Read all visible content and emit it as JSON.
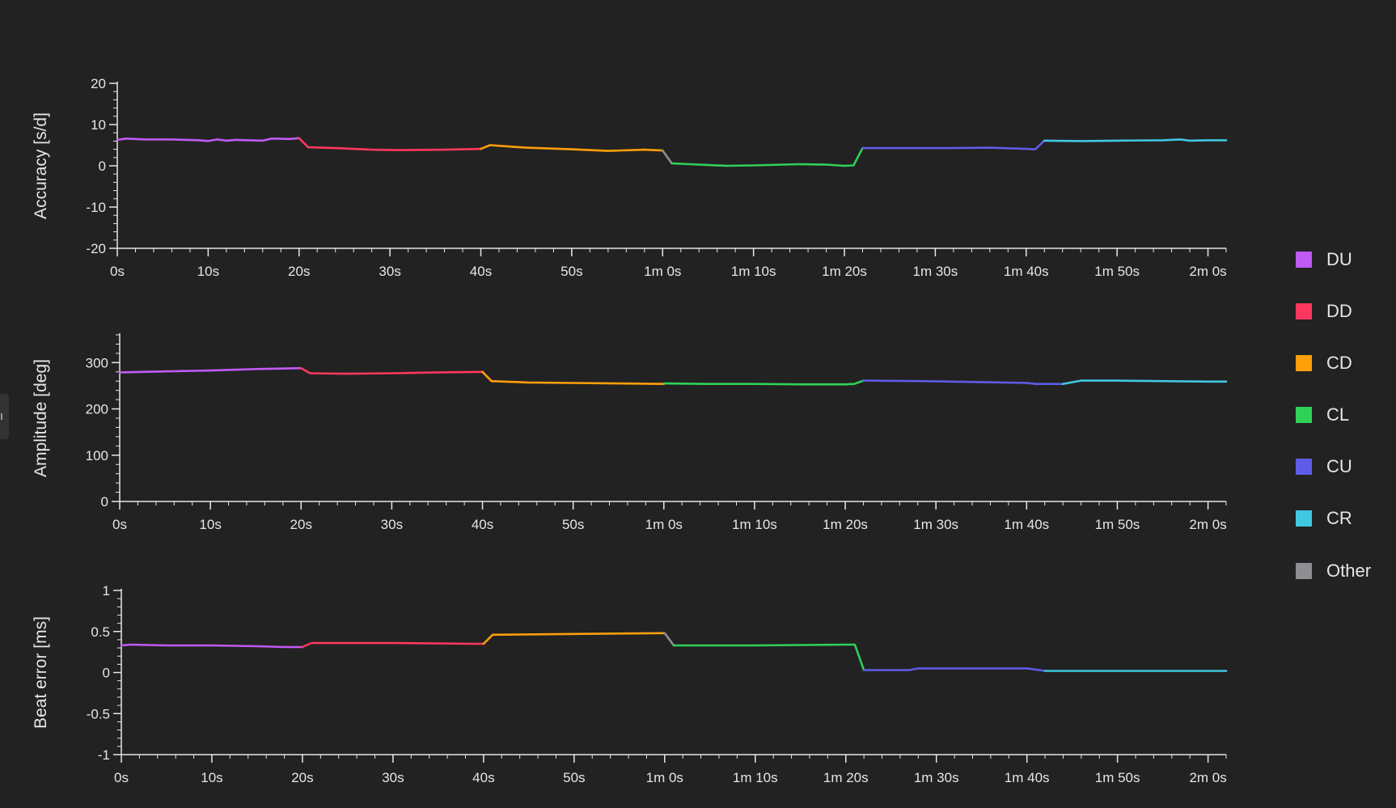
{
  "legend": [
    {
      "label": "DU",
      "color": "#bf5af2"
    },
    {
      "label": "DD",
      "color": "#ff375f"
    },
    {
      "label": "CD",
      "color": "#ff9f0a"
    },
    {
      "label": "CL",
      "color": "#30d158"
    },
    {
      "label": "CU",
      "color": "#5e5ce6"
    },
    {
      "label": "CR",
      "color": "#40c8e0"
    },
    {
      "label": "Other",
      "color": "#8e8e93"
    }
  ],
  "chart_data": [
    {
      "type": "line",
      "ylabel": "Accuracy [s/d]",
      "xlim": [
        0,
        122
      ],
      "ylim": [
        -20,
        20
      ],
      "yticks": [
        20,
        10,
        0,
        -10,
        -20
      ],
      "ytick_labels": [
        "20",
        "10",
        "0",
        "-10",
        "-20"
      ],
      "xticks": [
        0,
        10,
        20,
        30,
        40,
        50,
        60,
        70,
        80,
        90,
        100,
        110,
        120
      ],
      "xtick_labels": [
        "0s",
        "10s",
        "20s",
        "30s",
        "40s",
        "50s",
        "1m 0s",
        "1m 10s",
        "1m 20s",
        "1m 30s",
        "1m 40s",
        "1m 50s",
        "2m 0s"
      ],
      "series": [
        {
          "name": "DU",
          "color": "#bf5af2",
          "x": [
            0,
            1,
            3,
            6,
            9,
            10,
            11,
            12,
            13,
            16,
            17,
            19,
            20
          ],
          "y": [
            6.3,
            6.6,
            6.4,
            6.4,
            6.2,
            6.0,
            6.4,
            6.1,
            6.3,
            6.1,
            6.6,
            6.5,
            6.7
          ]
        },
        {
          "name": "DD",
          "color": "#ff375f",
          "x": [
            20,
            21,
            24,
            28,
            31,
            36,
            40
          ],
          "y": [
            6.7,
            4.5,
            4.3,
            3.9,
            3.8,
            3.9,
            4.1
          ]
        },
        {
          "name": "CD",
          "color": "#ff9f0a",
          "x": [
            40,
            41,
            45,
            50,
            54,
            58,
            60
          ],
          "y": [
            4.1,
            5.0,
            4.4,
            4.0,
            3.6,
            3.9,
            3.7
          ]
        },
        {
          "name": "Other",
          "color": "#8e8e93",
          "x": [
            60,
            61
          ],
          "y": [
            3.7,
            0.6
          ]
        },
        {
          "name": "CL",
          "color": "#30d158",
          "x": [
            61,
            63,
            67,
            70,
            75,
            78,
            80,
            81,
            82
          ],
          "y": [
            0.6,
            0.4,
            0.0,
            0.1,
            0.4,
            0.3,
            0.0,
            0.1,
            4.3
          ]
        },
        {
          "name": "CU",
          "color": "#5e5ce6",
          "x": [
            82,
            86,
            92,
            96,
            100,
            101,
            102
          ],
          "y": [
            4.3,
            4.3,
            4.3,
            4.4,
            4.1,
            4.0,
            6.1
          ]
        },
        {
          "name": "CR",
          "color": "#40c8e0",
          "x": [
            102,
            106,
            110,
            115,
            117,
            118,
            120,
            122
          ],
          "y": [
            6.1,
            6.0,
            6.1,
            6.2,
            6.4,
            6.1,
            6.2,
            6.2
          ]
        }
      ]
    },
    {
      "type": "line",
      "ylabel": "Amplitude [deg]",
      "xlim": [
        0,
        122
      ],
      "ylim": [
        0,
        360
      ],
      "yticks": [
        300,
        200,
        100,
        0
      ],
      "ytick_labels": [
        "300",
        "200",
        "100",
        "0"
      ],
      "xticks": [
        0,
        10,
        20,
        30,
        40,
        50,
        60,
        70,
        80,
        90,
        100,
        110,
        120
      ],
      "xtick_labels": [
        "0s",
        "10s",
        "20s",
        "30s",
        "40s",
        "50s",
        "1m 0s",
        "1m 10s",
        "1m 20s",
        "1m 30s",
        "1m 40s",
        "1m 50s",
        "2m 0s"
      ],
      "series": [
        {
          "name": "DU",
          "color": "#bf5af2",
          "x": [
            0,
            5,
            10,
            15,
            20
          ],
          "y": [
            279,
            281,
            283,
            286,
            288
          ]
        },
        {
          "name": "DD",
          "color": "#ff375f",
          "x": [
            20,
            21,
            25,
            30,
            35,
            40
          ],
          "y": [
            288,
            277,
            276,
            277,
            279,
            280
          ]
        },
        {
          "name": "CD",
          "color": "#ff9f0a",
          "x": [
            40,
            41,
            45,
            50,
            55,
            60
          ],
          "y": [
            280,
            260,
            257,
            256,
            255,
            254
          ]
        },
        {
          "name": "CL",
          "color": "#30d158",
          "x": [
            60,
            65,
            70,
            75,
            80,
            81,
            82
          ],
          "y": [
            255,
            254,
            254,
            253,
            253,
            254,
            261
          ]
        },
        {
          "name": "CU",
          "color": "#5e5ce6",
          "x": [
            82,
            88,
            95,
            100,
            101,
            104
          ],
          "y": [
            261,
            260,
            258,
            256,
            254,
            254
          ]
        },
        {
          "name": "CR",
          "color": "#40c8e0",
          "x": [
            104,
            106,
            110,
            115,
            120,
            122
          ],
          "y": [
            254,
            261,
            261,
            260,
            259,
            259
          ]
        }
      ]
    },
    {
      "type": "line",
      "ylabel": "Beat error [ms]",
      "xlim": [
        0,
        122
      ],
      "ylim": [
        -1,
        1
      ],
      "yticks": [
        1,
        0.5,
        0,
        -0.5,
        -1
      ],
      "ytick_labels": [
        "1",
        "0.5",
        "0",
        "-0.5",
        "-1"
      ],
      "xticks": [
        0,
        10,
        20,
        30,
        40,
        50,
        60,
        70,
        80,
        90,
        100,
        110,
        120
      ],
      "xtick_labels": [
        "0s",
        "10s",
        "20s",
        "30s",
        "40s",
        "50s",
        "1m 0s",
        "1m 10s",
        "1m 20s",
        "1m 30s",
        "1m 40s",
        "1m 50s",
        "2m 0s"
      ],
      "series": [
        {
          "name": "DU",
          "color": "#bf5af2",
          "x": [
            0,
            1,
            5,
            10,
            15,
            18,
            20
          ],
          "y": [
            0.33,
            0.34,
            0.33,
            0.33,
            0.32,
            0.31,
            0.31
          ]
        },
        {
          "name": "DD",
          "color": "#ff375f",
          "x": [
            20,
            21,
            30,
            39,
            40
          ],
          "y": [
            0.31,
            0.36,
            0.36,
            0.35,
            0.35
          ]
        },
        {
          "name": "CD",
          "color": "#ff9f0a",
          "x": [
            40,
            41,
            50,
            60
          ],
          "y": [
            0.35,
            0.46,
            0.47,
            0.48
          ]
        },
        {
          "name": "Other",
          "color": "#8e8e93",
          "x": [
            60,
            61
          ],
          "y": [
            0.48,
            0.33
          ]
        },
        {
          "name": "CL",
          "color": "#30d158",
          "x": [
            61,
            70,
            80,
            81,
            82
          ],
          "y": [
            0.33,
            0.33,
            0.34,
            0.34,
            0.03
          ]
        },
        {
          "name": "CU",
          "color": "#5e5ce6",
          "x": [
            82,
            87,
            88,
            95,
            100,
            102
          ],
          "y": [
            0.03,
            0.03,
            0.05,
            0.05,
            0.05,
            0.02
          ]
        },
        {
          "name": "CR",
          "color": "#40c8e0",
          "x": [
            102,
            110,
            120,
            122
          ],
          "y": [
            0.02,
            0.02,
            0.02,
            0.02
          ]
        }
      ]
    }
  ]
}
